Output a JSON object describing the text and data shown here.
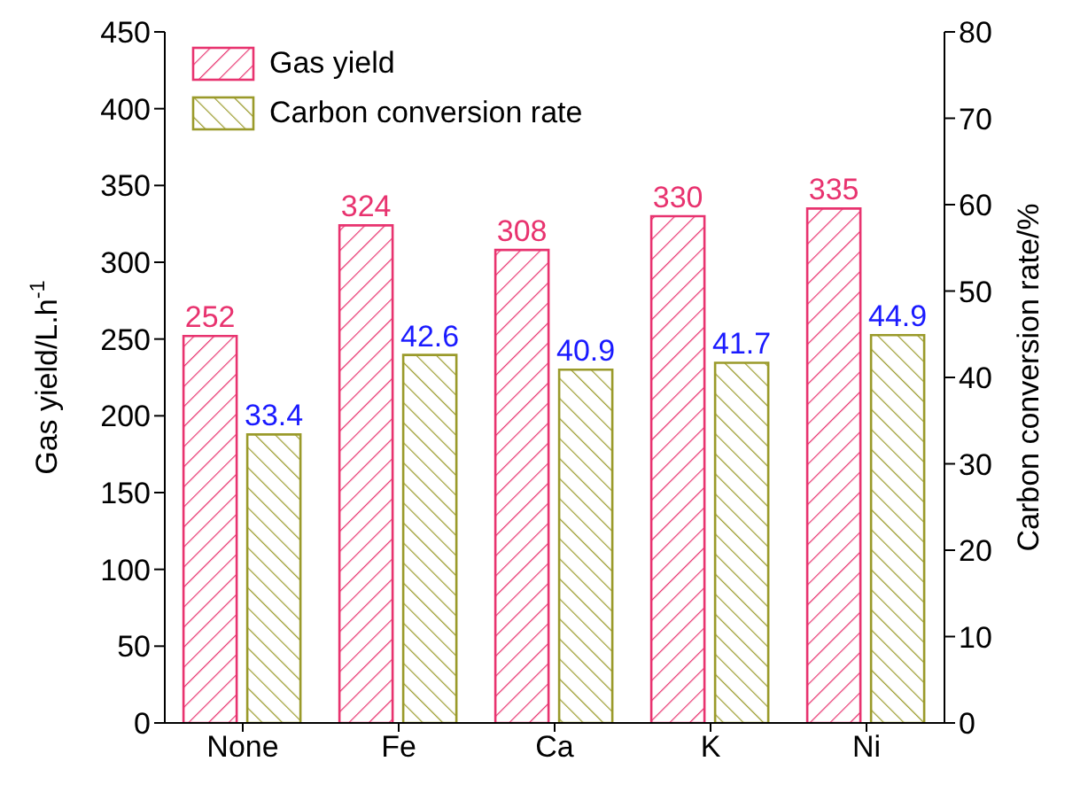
{
  "chart_data": {
    "type": "bar",
    "categories": [
      "None",
      "Fe",
      "Ca",
      "K",
      "Ni"
    ],
    "ylabel": "Gas yield/L.h$^{-1}$",
    "y2label": "Carbon conversion rate/%",
    "series": [
      {
        "name": "Gas yield",
        "color": "#e8336f",
        "values": [
          252,
          324,
          308,
          330,
          335
        ]
      },
      {
        "name": "Carbon conversion rate",
        "color": "#9a9a2a",
        "axis": "y2",
        "values": [
          33.4,
          42.6,
          40.9,
          41.7,
          44.9
        ]
      }
    ],
    "ylim": [
      0,
      450
    ],
    "yticks": [
      0,
      50,
      100,
      150,
      200,
      250,
      300,
      350,
      400,
      450
    ],
    "y2lim": [
      0,
      80
    ],
    "y2ticks": [
      0,
      10,
      20,
      30,
      40,
      50,
      60,
      70,
      80
    ],
    "data_labels": true,
    "legend": "top left"
  }
}
